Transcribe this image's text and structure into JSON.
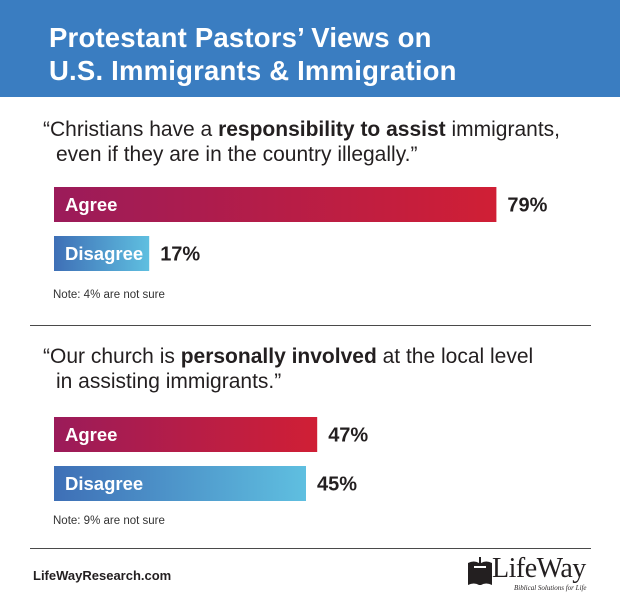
{
  "header": {
    "title_line1": "Protestant Pastors’ Views on",
    "title_line2": "U.S. Immigrants & Immigration"
  },
  "colors": {
    "header_bg": "#3a7dc1",
    "agree_start": "#9b1b5a",
    "agree_end": "#d01f35",
    "disagree_start": "#3e6fb6",
    "disagree_end": "#5fbfe0"
  },
  "questions": [
    {
      "line1_pre": "“Christians have a ",
      "line1_bold": "responsibility to assist",
      "line1_post": " immigrants,",
      "line2_pre": "even if they are in the country illegally.”",
      "line2_bold": "",
      "line2_post": "",
      "note": "Note: 4% are not sure"
    },
    {
      "line1_pre": "“Our church is ",
      "line1_bold": "personally involved",
      "line1_post": " at the local level",
      "line2_pre": "in assisting immigrants.”",
      "line2_bold": "",
      "line2_post": "",
      "note": "Note: 9% are not sure"
    }
  ],
  "chart_data": [
    {
      "type": "bar",
      "orientation": "horizontal",
      "categories": [
        "Agree",
        "Disagree"
      ],
      "values": [
        79,
        17
      ],
      "value_labels": [
        "79%",
        "17%"
      ],
      "xlim": [
        0,
        100
      ]
    },
    {
      "type": "bar",
      "orientation": "horizontal",
      "categories": [
        "Agree",
        "Disagree"
      ],
      "values": [
        47,
        45
      ],
      "value_labels": [
        "47%",
        "45%"
      ],
      "xlim": [
        0,
        100
      ]
    }
  ],
  "footer": {
    "website": "LifeWayResearch.com",
    "logo_name": "LifeWay",
    "logo_tagline": "Biblical Solutions for Life",
    "logo_icon": "cross-book-icon"
  }
}
